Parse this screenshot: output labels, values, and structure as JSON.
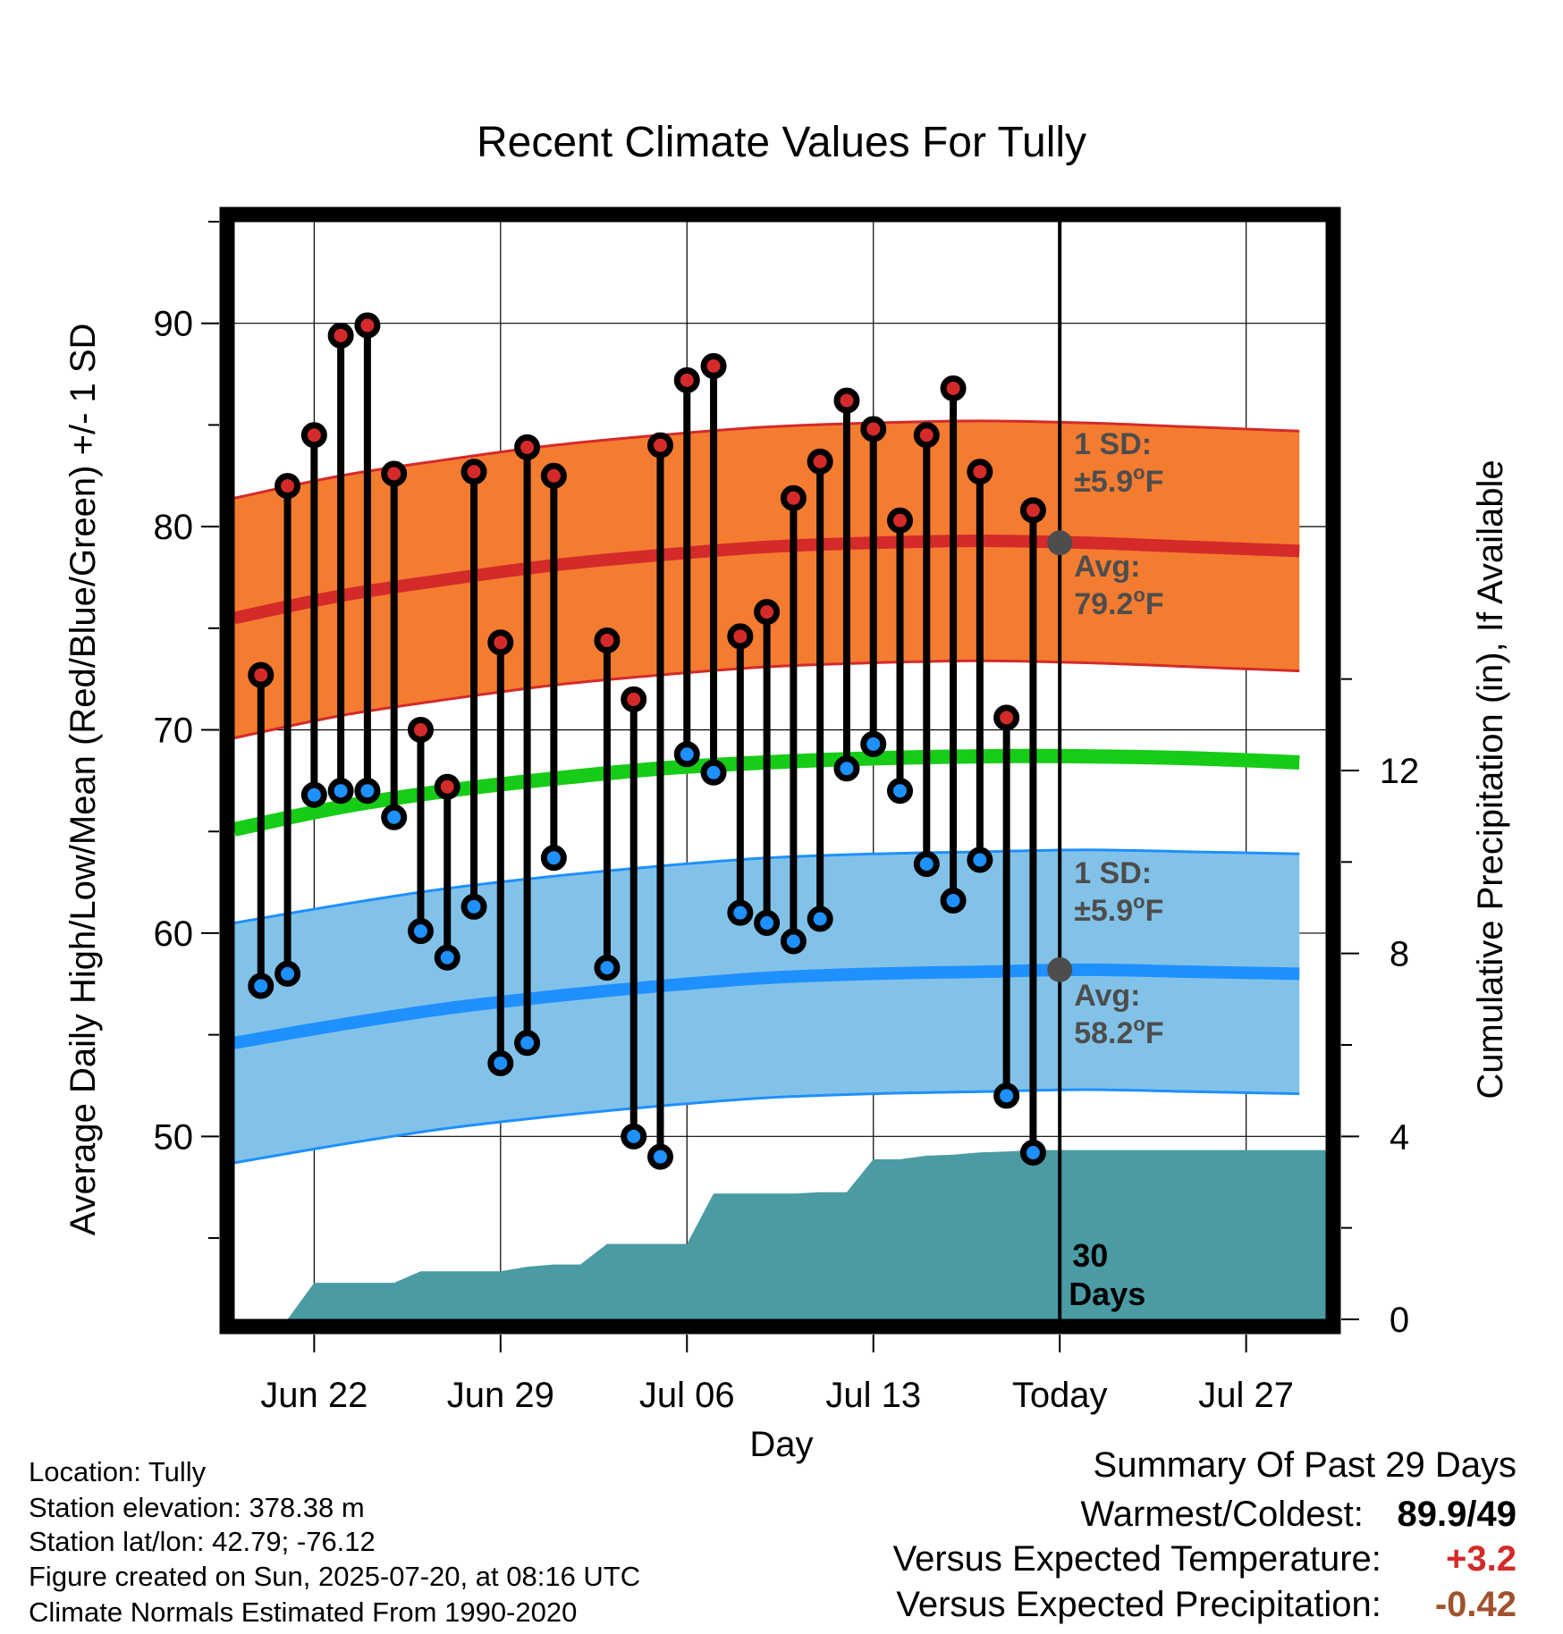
{
  "chart_data": {
    "type": "line",
    "title": "Recent Climate Values For Tully",
    "xlabel": "Day",
    "ylabel_left": "Average Daily High/Low/Mean (Red/Blue/Green) +/- 1 SD",
    "ylabel_right": "Cumulative Precipitation (in), If Available",
    "x_range": [
      "2025-06-19",
      "2025-07-30"
    ],
    "y_left_range": [
      41,
      95
    ],
    "y_left_ticks": [
      50,
      60,
      70,
      80,
      90
    ],
    "y_right_range": [
      0,
      24
    ],
    "y_right_ticks": [
      0,
      4,
      8,
      12
    ],
    "x_ticks": [
      {
        "date": "2025-06-22",
        "label": "Jun 22"
      },
      {
        "date": "2025-06-29",
        "label": "Jun 29"
      },
      {
        "date": "2025-07-06",
        "label": "Jul 06"
      },
      {
        "date": "2025-07-13",
        "label": "Jul 13"
      },
      {
        "date": "2025-07-20",
        "label": "Today"
      },
      {
        "date": "2025-07-27",
        "label": "Jul 27"
      }
    ],
    "today": "2025-07-20",
    "grid": true,
    "colors": {
      "high": "#d42a2a",
      "low": "#1e90ff",
      "mean": "#16cc16",
      "high_band": "#f47c30",
      "low_band": "#83c2e8",
      "precip": "#4a9ba4",
      "avg_marker": "#4d4d4d"
    },
    "normals": {
      "dates": [
        "2025-06-19",
        "2025-06-23",
        "2025-06-27",
        "2025-07-01",
        "2025-07-05",
        "2025-07-09",
        "2025-07-13",
        "2025-07-17",
        "2025-07-21",
        "2025-07-25",
        "2025-07-29"
      ],
      "avg_high": [
        75.5,
        76.6,
        77.4,
        78.1,
        78.6,
        79.0,
        79.2,
        79.3,
        79.2,
        79.0,
        78.8
      ],
      "avg_low": [
        54.6,
        55.5,
        56.3,
        56.9,
        57.4,
        57.8,
        58.0,
        58.1,
        58.2,
        58.1,
        58.0
      ],
      "avg_mean": [
        65.1,
        66.2,
        67.0,
        67.6,
        68.1,
        68.4,
        68.6,
        68.7,
        68.7,
        68.6,
        68.4
      ],
      "sd": 5.9
    },
    "series": [
      {
        "name": "High",
        "x": [
          "2025-06-20",
          "2025-06-21",
          "2025-06-22",
          "2025-06-23",
          "2025-06-24",
          "2025-06-25",
          "2025-06-26",
          "2025-06-27",
          "2025-06-28",
          "2025-06-29",
          "2025-06-30",
          "2025-07-01",
          "2025-07-03",
          "2025-07-04",
          "2025-07-05",
          "2025-07-06",
          "2025-07-07",
          "2025-07-08",
          "2025-07-09",
          "2025-07-10",
          "2025-07-11",
          "2025-07-12",
          "2025-07-13",
          "2025-07-14",
          "2025-07-15",
          "2025-07-16",
          "2025-07-17",
          "2025-07-18",
          "2025-07-19"
        ],
        "values": [
          72.7,
          82.0,
          84.5,
          89.4,
          89.9,
          82.6,
          70.0,
          67.2,
          82.7,
          74.3,
          83.9,
          82.5,
          74.4,
          71.5,
          84.0,
          87.2,
          87.9,
          74.6,
          75.8,
          81.4,
          83.2,
          86.2,
          84.8,
          80.3,
          84.5,
          86.8,
          82.7,
          70.6,
          80.8
        ]
      },
      {
        "name": "Low",
        "x": [
          "2025-06-20",
          "2025-06-21",
          "2025-06-22",
          "2025-06-23",
          "2025-06-24",
          "2025-06-25",
          "2025-06-26",
          "2025-06-27",
          "2025-06-28",
          "2025-06-29",
          "2025-06-30",
          "2025-07-01",
          "2025-07-03",
          "2025-07-04",
          "2025-07-05",
          "2025-07-06",
          "2025-07-07",
          "2025-07-08",
          "2025-07-09",
          "2025-07-10",
          "2025-07-11",
          "2025-07-12",
          "2025-07-13",
          "2025-07-14",
          "2025-07-15",
          "2025-07-16",
          "2025-07-17",
          "2025-07-18",
          "2025-07-19"
        ],
        "values": [
          57.4,
          58.0,
          66.8,
          67.0,
          67.0,
          65.7,
          60.1,
          58.8,
          61.3,
          53.6,
          54.6,
          63.7,
          58.3,
          50.0,
          49.0,
          68.8,
          67.9,
          61.0,
          60.5,
          59.6,
          60.7,
          68.1,
          69.3,
          67.0,
          63.4,
          61.6,
          63.6,
          52.0,
          49.2
        ]
      },
      {
        "name": "Cumulative Precipitation",
        "x": [
          "2025-06-19",
          "2025-06-20",
          "2025-06-21",
          "2025-06-22",
          "2025-06-23",
          "2025-06-24",
          "2025-06-25",
          "2025-06-26",
          "2025-06-27",
          "2025-06-28",
          "2025-06-29",
          "2025-06-30",
          "2025-07-01",
          "2025-07-02",
          "2025-07-03",
          "2025-07-04",
          "2025-07-05",
          "2025-07-06",
          "2025-07-07",
          "2025-07-08",
          "2025-07-09",
          "2025-07-10",
          "2025-07-11",
          "2025-07-12",
          "2025-07-13",
          "2025-07-14",
          "2025-07-15",
          "2025-07-16",
          "2025-07-17",
          "2025-07-18",
          "2025-07-19",
          "2025-07-30"
        ],
        "values": [
          0.0,
          0.0,
          0.0,
          0.8,
          0.8,
          0.8,
          0.8,
          1.05,
          1.05,
          1.05,
          1.05,
          1.15,
          1.2,
          1.2,
          1.65,
          1.65,
          1.65,
          1.65,
          2.75,
          2.75,
          2.75,
          2.75,
          2.78,
          2.78,
          3.5,
          3.5,
          3.58,
          3.6,
          3.65,
          3.67,
          3.7,
          3.7
        ]
      }
    ],
    "annotations": {
      "high_sd_label": "1 SD:",
      "high_sd_value": "±5.9",
      "high_avg_label": "Avg:",
      "high_avg_value": "79.2",
      "low_sd_label": "1 SD:",
      "low_sd_value": "±5.9",
      "low_avg_label": "Avg:",
      "low_avg_value": "58.2",
      "degree_symbol": "o",
      "unit": "F",
      "window_number": "30",
      "window_label": "Days"
    }
  },
  "info": {
    "location": "Location: Tully",
    "elevation": "Station elevation: 378.38 m",
    "latlon": "Station lat/lon: 42.79; -76.12",
    "created": "Figure created on Sun, 2025-07-20, at 08:16 UTC",
    "normals": "Climate Normals Estimated From 1990-2020"
  },
  "summary": {
    "title": "Summary Of Past 29 Days",
    "warmest_label": "Warmest/Coldest:",
    "warmest_value": "89.9/49",
    "temp_label": "Versus Expected Temperature:",
    "temp_value": "+3.2",
    "temp_color": "#d42a2a",
    "precip_label": "Versus Expected Precipitation:",
    "precip_value": "-0.42",
    "precip_color": "#a0522d"
  }
}
